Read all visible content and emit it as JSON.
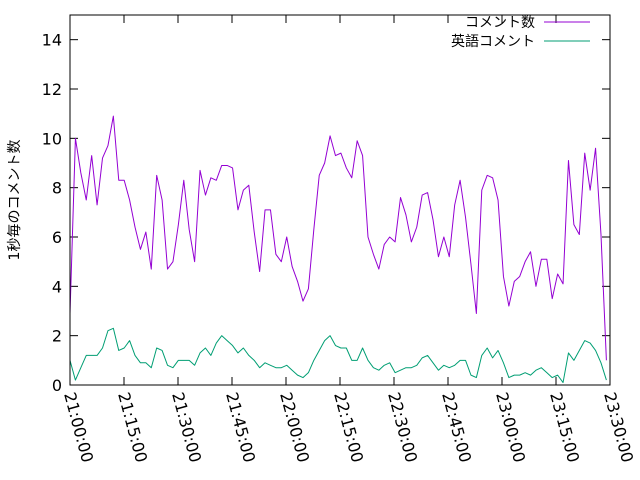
{
  "chart_data": {
    "type": "line",
    "title": "",
    "xlabel": "",
    "ylabel": "1秒毎のコメント数",
    "ylim": [
      0,
      15
    ],
    "xlim": [
      "21:00:00",
      "23:30:00"
    ],
    "x_tick_labels": [
      "21:00:00",
      "21:15:00",
      "21:30:00",
      "21:45:00",
      "22:00:00",
      "22:15:00",
      "22:30:00",
      "22:45:00",
      "23:00:00",
      "23:15:00",
      "23:30:00"
    ],
    "y_ticks": [
      0,
      2,
      4,
      6,
      8,
      10,
      12,
      14
    ],
    "y_tick_labels": [
      "0",
      "2",
      "4",
      "6",
      "8",
      "10",
      "12",
      "14"
    ],
    "grid": false,
    "legend_position": "top-right",
    "series": [
      {
        "name": "コメント数",
        "color": "#9400d3",
        "values": [
          [
            0,
            2.9
          ],
          [
            1,
            10.0
          ],
          [
            2,
            8.6
          ],
          [
            3,
            7.5
          ],
          [
            4,
            9.3
          ],
          [
            5,
            7.3
          ],
          [
            6,
            9.2
          ],
          [
            7,
            9.7
          ],
          [
            8,
            10.9
          ],
          [
            9,
            8.3
          ],
          [
            10,
            8.3
          ],
          [
            11,
            7.5
          ],
          [
            12,
            6.4
          ],
          [
            13,
            5.5
          ],
          [
            14,
            6.2
          ],
          [
            15,
            4.7
          ],
          [
            16,
            8.5
          ],
          [
            17,
            7.5
          ],
          [
            18,
            4.7
          ],
          [
            19,
            5.0
          ],
          [
            20,
            6.5
          ],
          [
            21,
            8.3
          ],
          [
            22,
            6.3
          ],
          [
            23,
            5.0
          ],
          [
            24,
            8.7
          ],
          [
            25,
            7.7
          ],
          [
            26,
            8.4
          ],
          [
            27,
            8.3
          ],
          [
            28,
            8.9
          ],
          [
            29,
            8.9
          ],
          [
            30,
            8.8
          ],
          [
            31,
            7.1
          ],
          [
            32,
            7.9
          ],
          [
            33,
            8.1
          ],
          [
            34,
            6.2
          ],
          [
            35,
            4.6
          ],
          [
            36,
            7.1
          ],
          [
            37,
            7.1
          ],
          [
            38,
            5.3
          ],
          [
            39,
            5.0
          ],
          [
            40,
            6.0
          ],
          [
            41,
            4.8
          ],
          [
            42,
            4.2
          ],
          [
            43,
            3.4
          ],
          [
            44,
            3.9
          ],
          [
            45,
            6.3
          ],
          [
            46,
            8.5
          ],
          [
            47,
            9.0
          ],
          [
            48,
            10.1
          ],
          [
            49,
            9.3
          ],
          [
            50,
            9.4
          ],
          [
            51,
            8.8
          ],
          [
            52,
            8.4
          ],
          [
            53,
            9.9
          ],
          [
            54,
            9.3
          ],
          [
            55,
            6.0
          ],
          [
            56,
            5.3
          ],
          [
            57,
            4.7
          ],
          [
            58,
            5.7
          ],
          [
            59,
            6.0
          ],
          [
            60,
            5.8
          ],
          [
            61,
            7.6
          ],
          [
            62,
            6.9
          ],
          [
            63,
            5.8
          ],
          [
            64,
            6.4
          ],
          [
            65,
            7.7
          ],
          [
            66,
            7.8
          ],
          [
            67,
            6.7
          ],
          [
            68,
            5.2
          ],
          [
            69,
            6.0
          ],
          [
            70,
            5.2
          ],
          [
            71,
            7.3
          ],
          [
            72,
            8.3
          ],
          [
            73,
            6.8
          ],
          [
            74,
            4.9
          ],
          [
            75,
            2.9
          ],
          [
            76,
            7.9
          ],
          [
            77,
            8.5
          ],
          [
            78,
            8.4
          ],
          [
            79,
            7.5
          ],
          [
            80,
            4.4
          ],
          [
            81,
            3.2
          ],
          [
            82,
            4.2
          ],
          [
            83,
            4.4
          ],
          [
            84,
            5.0
          ],
          [
            85,
            5.4
          ],
          [
            86,
            4.0
          ],
          [
            87,
            5.1
          ],
          [
            88,
            5.1
          ],
          [
            89,
            3.5
          ],
          [
            90,
            4.5
          ],
          [
            91,
            4.1
          ],
          [
            92,
            9.1
          ],
          [
            93,
            6.5
          ],
          [
            94,
            6.1
          ],
          [
            95,
            9.4
          ],
          [
            96,
            7.9
          ],
          [
            97,
            9.6
          ],
          [
            98,
            6.1
          ],
          [
            99,
            1.0
          ]
        ]
      },
      {
        "name": "英語コメント",
        "color": "#009e73",
        "values": [
          [
            0,
            1.0
          ],
          [
            1,
            0.2
          ],
          [
            2,
            0.7
          ],
          [
            3,
            1.2
          ],
          [
            4,
            1.2
          ],
          [
            5,
            1.2
          ],
          [
            6,
            1.5
          ],
          [
            7,
            2.2
          ],
          [
            8,
            2.3
          ],
          [
            9,
            1.4
          ],
          [
            10,
            1.5
          ],
          [
            11,
            1.8
          ],
          [
            12,
            1.2
          ],
          [
            13,
            0.9
          ],
          [
            14,
            0.9
          ],
          [
            15,
            0.7
          ],
          [
            16,
            1.5
          ],
          [
            17,
            1.4
          ],
          [
            18,
            0.8
          ],
          [
            19,
            0.7
          ],
          [
            20,
            1.0
          ],
          [
            21,
            1.0
          ],
          [
            22,
            1.0
          ],
          [
            23,
            0.8
          ],
          [
            24,
            1.3
          ],
          [
            25,
            1.5
          ],
          [
            26,
            1.2
          ],
          [
            27,
            1.7
          ],
          [
            28,
            2.0
          ],
          [
            29,
            1.8
          ],
          [
            30,
            1.6
          ],
          [
            31,
            1.3
          ],
          [
            32,
            1.5
          ],
          [
            33,
            1.2
          ],
          [
            34,
            1.0
          ],
          [
            35,
            0.7
          ],
          [
            36,
            0.9
          ],
          [
            37,
            0.8
          ],
          [
            38,
            0.7
          ],
          [
            39,
            0.7
          ],
          [
            40,
            0.8
          ],
          [
            41,
            0.6
          ],
          [
            42,
            0.4
          ],
          [
            43,
            0.3
          ],
          [
            44,
            0.5
          ],
          [
            45,
            1.0
          ],
          [
            46,
            1.4
          ],
          [
            47,
            1.8
          ],
          [
            48,
            2.0
          ],
          [
            49,
            1.6
          ],
          [
            50,
            1.5
          ],
          [
            51,
            1.5
          ],
          [
            52,
            1.0
          ],
          [
            53,
            1.0
          ],
          [
            54,
            1.5
          ],
          [
            55,
            1.0
          ],
          [
            56,
            0.7
          ],
          [
            57,
            0.6
          ],
          [
            58,
            0.8
          ],
          [
            59,
            0.9
          ],
          [
            60,
            0.5
          ],
          [
            61,
            0.6
          ],
          [
            62,
            0.7
          ],
          [
            63,
            0.7
          ],
          [
            64,
            0.8
          ],
          [
            65,
            1.1
          ],
          [
            66,
            1.2
          ],
          [
            67,
            0.9
          ],
          [
            68,
            0.6
          ],
          [
            69,
            0.8
          ],
          [
            70,
            0.7
          ],
          [
            71,
            0.8
          ],
          [
            72,
            1.0
          ],
          [
            73,
            1.0
          ],
          [
            74,
            0.4
          ],
          [
            75,
            0.3
          ],
          [
            76,
            1.2
          ],
          [
            77,
            1.5
          ],
          [
            78,
            1.1
          ],
          [
            79,
            1.4
          ],
          [
            80,
            0.9
          ],
          [
            81,
            0.3
          ],
          [
            82,
            0.4
          ],
          [
            83,
            0.4
          ],
          [
            84,
            0.5
          ],
          [
            85,
            0.4
          ],
          [
            86,
            0.6
          ],
          [
            87,
            0.7
          ],
          [
            88,
            0.5
          ],
          [
            89,
            0.3
          ],
          [
            90,
            0.4
          ],
          [
            91,
            0.1
          ],
          [
            92,
            1.3
          ],
          [
            93,
            1.0
          ],
          [
            94,
            1.4
          ],
          [
            95,
            1.8
          ],
          [
            96,
            1.7
          ],
          [
            97,
            1.4
          ],
          [
            98,
            0.9
          ],
          [
            99,
            0.2
          ]
        ]
      }
    ]
  }
}
